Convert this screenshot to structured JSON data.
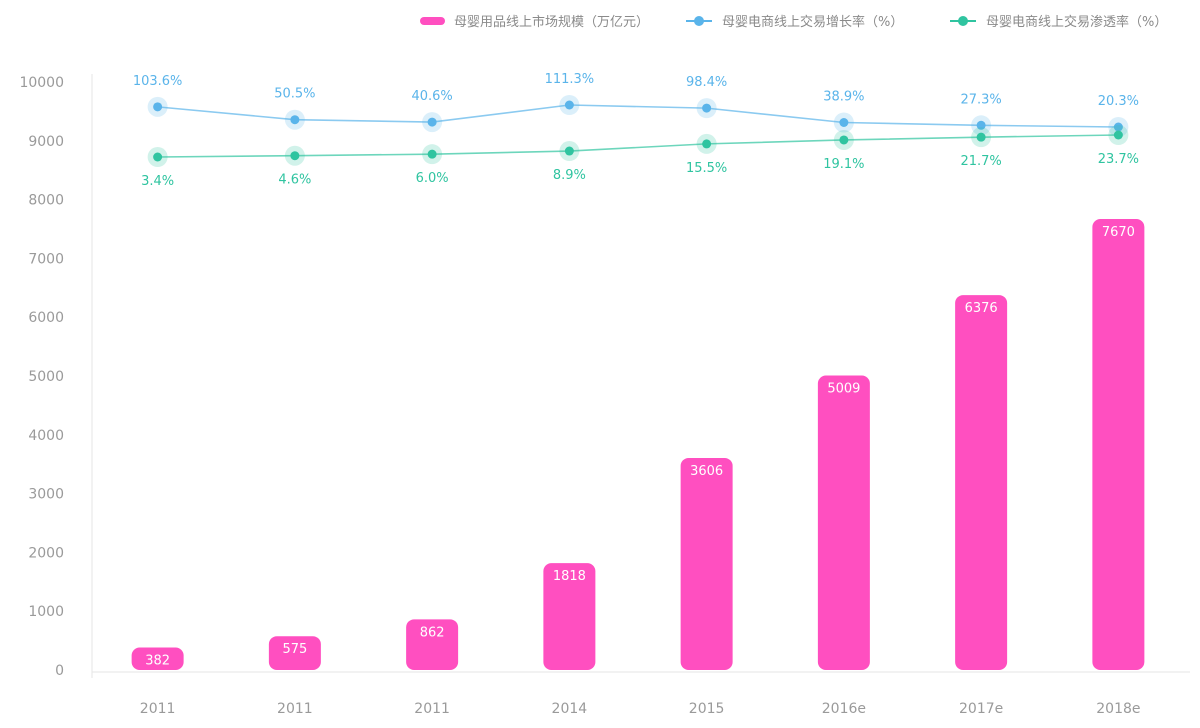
{
  "chart_data": {
    "type": "bar",
    "categories": [
      "2011",
      "2011",
      "2011",
      "2014",
      "2015",
      "2016e",
      "2017e",
      "2018e"
    ],
    "series": [
      {
        "name": "母婴用品线上市场规模（万亿元）",
        "type": "bar",
        "color": "#ff4fc0",
        "values": [
          382,
          575,
          862,
          1818,
          3606,
          5009,
          6376,
          7670
        ],
        "labels": [
          "382",
          "575",
          "862",
          "1818",
          "3606",
          "5009",
          "6376",
          "7670"
        ]
      },
      {
        "name": "母婴电商线上交易增长率（%）",
        "type": "line",
        "color": "#5ab4ea",
        "values": [
          103.6,
          50.5,
          40.6,
          111.3,
          98.4,
          38.9,
          27.3,
          20.3
        ],
        "labels": [
          "103.6%",
          "50.5%",
          "40.6%",
          "111.3%",
          "98.4%",
          "38.9%",
          "27.3%",
          "20.3%"
        ]
      },
      {
        "name": "母婴电商线上交易渗透率（%）",
        "type": "line",
        "color": "#2fc4a0",
        "values": [
          3.4,
          4.6,
          6.0,
          8.9,
          15.5,
          19.1,
          21.7,
          23.7
        ],
        "labels": [
          "3.4%",
          "4.6%",
          "6.0%",
          "8.9%",
          "15.5%",
          "19.1%",
          "21.7%",
          "23.7%"
        ]
      }
    ],
    "y_ticks": [
      "0",
      "1000",
      "2000",
      "3000",
      "4000",
      "5000",
      "6000",
      "7000",
      "8000",
      "9000",
      "10000"
    ],
    "ylim": [
      0,
      10000
    ],
    "xlabel": "",
    "ylabel": "",
    "legend": "top-right",
    "grid": false
  }
}
